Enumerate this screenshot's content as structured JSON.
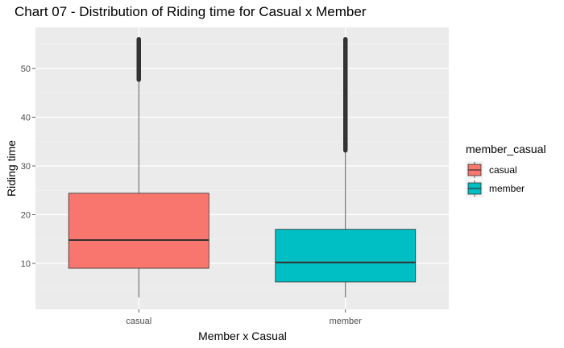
{
  "chart_data": {
    "type": "boxplot",
    "title": "Chart 07 - Distribution of Riding time for Casual x Member",
    "xlabel": "Member x Casual",
    "ylabel": "Riding time",
    "categories": [
      "casual",
      "member"
    ],
    "ylim": [
      0,
      58
    ],
    "y_ticks": [
      10,
      20,
      30,
      40,
      50
    ],
    "grid": true,
    "legend": {
      "title": "member_casual",
      "position": "right",
      "entries": [
        "casual",
        "member"
      ]
    },
    "series": [
      {
        "name": "casual",
        "color": "#F8766D",
        "min": 3,
        "q1": 9,
        "median": 14.8,
        "q3": 24.4,
        "whisker_high": 47.7,
        "outliers_range": [
          47.7,
          56
        ]
      },
      {
        "name": "member",
        "color": "#00BFC4",
        "min": 3,
        "q1": 6.2,
        "median": 10.2,
        "q3": 17,
        "whisker_high": 33.2,
        "outliers_range": [
          33.2,
          56
        ]
      }
    ]
  }
}
